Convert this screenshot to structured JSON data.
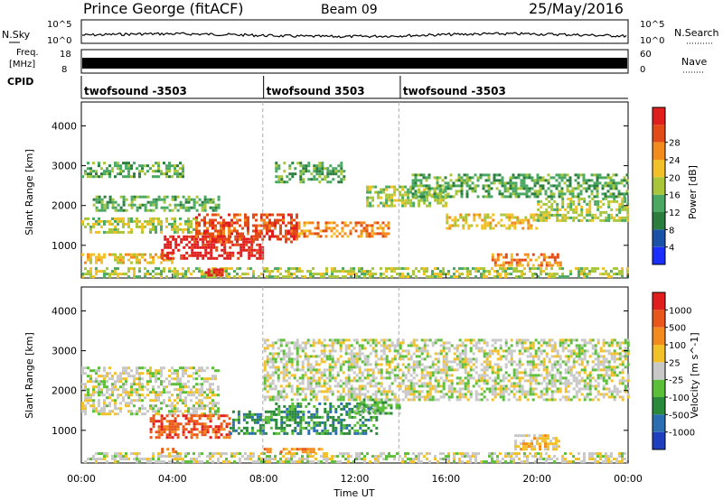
{
  "header": {
    "station": "Prince George (fitACF)",
    "beam": "Beam 09",
    "date": "25/May/2016"
  },
  "top_strips": {
    "nsky_label": "N.Sky",
    "nsky_ticks": [
      "10^5",
      "10^0"
    ],
    "nsearch_label": "N.Search",
    "freq_label_1": "Freq.",
    "freq_label_2": "[MHz]",
    "freq_ticks": [
      "18",
      "8"
    ],
    "nave_ticks": [
      "60",
      "0"
    ],
    "nave_label": "Nave",
    "cpid_label": "CPID",
    "cpid_segments": [
      {
        "start_hour": 0,
        "end_hour": 8,
        "label": "twofsound -3503"
      },
      {
        "start_hour": 8,
        "end_hour": 14,
        "label": "twofsound 3503"
      },
      {
        "start_hour": 14,
        "end_hour": 24,
        "label": "twofsound -3503"
      }
    ]
  },
  "x_axis": {
    "label": "Time UT",
    "ticks": [
      "00:00",
      "04:00",
      "08:00",
      "12:00",
      "16:00",
      "20:00",
      "00:00"
    ]
  },
  "chart_data": [
    {
      "type": "heatmap",
      "title": "",
      "xlabel": "Time UT",
      "ylabel": "Slant Range [km]",
      "x_range_hours": [
        0,
        24
      ],
      "ylim": [
        180,
        4600
      ],
      "yticks": [
        1000,
        2000,
        3000,
        4000
      ],
      "colorbar": {
        "label": "Power [dB]",
        "ticks": [
          "4",
          "8",
          "12",
          "16",
          "20",
          "24",
          "28"
        ],
        "colors": [
          "#1a2fff",
          "#1a52a8",
          "#2a7d3c",
          "#4aa862",
          "#a9c63a",
          "#f2c12a",
          "#f28a1e",
          "#e24b17",
          "#e01e1e"
        ]
      },
      "features": [
        {
          "t0": 0.0,
          "t1": 24.0,
          "r0": 200,
          "r1": 450,
          "level": 4
        },
        {
          "t0": 0.0,
          "t1": 4.0,
          "r0": 550,
          "r1": 800,
          "level": 5
        },
        {
          "t0": 0.0,
          "t1": 5.0,
          "r0": 1350,
          "r1": 1700,
          "level": 4
        },
        {
          "t0": 0.5,
          "t1": 6.0,
          "r0": 1850,
          "r1": 2250,
          "level": 3
        },
        {
          "t0": 0.0,
          "t1": 4.5,
          "r0": 2700,
          "r1": 3100,
          "level": 3
        },
        {
          "t0": 3.5,
          "t1": 8.0,
          "r0": 650,
          "r1": 1250,
          "level": 8
        },
        {
          "t0": 5.0,
          "t1": 9.5,
          "r0": 1100,
          "r1": 1800,
          "level": 7
        },
        {
          "t0": 5.3,
          "t1": 6.2,
          "r0": 250,
          "r1": 420,
          "level": 8
        },
        {
          "t0": 8.5,
          "t1": 11.5,
          "r0": 2600,
          "r1": 3100,
          "level": 3
        },
        {
          "t0": 9.5,
          "t1": 13.5,
          "r0": 1200,
          "r1": 1600,
          "level": 6
        },
        {
          "t0": 12.5,
          "t1": 16.0,
          "r0": 2000,
          "r1": 2500,
          "level": 4
        },
        {
          "t0": 16.0,
          "t1": 20.0,
          "r0": 1400,
          "r1": 1800,
          "level": 5
        },
        {
          "t0": 14.5,
          "t1": 24.0,
          "r0": 2200,
          "r1": 2800,
          "level": 3
        },
        {
          "t0": 18.0,
          "t1": 21.0,
          "r0": 500,
          "r1": 800,
          "level": 6
        },
        {
          "t0": 20.0,
          "t1": 24.0,
          "r0": 1600,
          "r1": 2200,
          "level": 4
        }
      ]
    },
    {
      "type": "heatmap",
      "title": "",
      "xlabel": "Time UT",
      "ylabel": "Slant Range [km]",
      "x_range_hours": [
        0,
        24
      ],
      "ylim": [
        180,
        4600
      ],
      "yticks": [
        1000,
        2000,
        3000,
        4000
      ],
      "colorbar": {
        "label": "Velocity [m s^-1]",
        "ticks": [
          "1000",
          "500",
          "100",
          "25",
          "-25",
          "-100",
          "-500",
          "-1000"
        ],
        "colors": [
          "#1f3fbf",
          "#2a6db0",
          "#2a8a3c",
          "#5cbf3a",
          "#c8c8c8",
          "#f2c12a",
          "#f28a1e",
          "#e8561a",
          "#e01e1e"
        ]
      },
      "features": [
        {
          "t0": 0.0,
          "t1": 24.0,
          "r0": 200,
          "r1": 450,
          "level": 4
        },
        {
          "t0": 0.0,
          "t1": 6.0,
          "r0": 1400,
          "r1": 2600,
          "level": 4
        },
        {
          "t0": 3.0,
          "t1": 6.5,
          "r0": 800,
          "r1": 1400,
          "level": 7
        },
        {
          "t0": 6.5,
          "t1": 8.5,
          "r0": 900,
          "r1": 1500,
          "level": 2
        },
        {
          "t0": 8.5,
          "t1": 13.0,
          "r0": 900,
          "r1": 1700,
          "level": 2
        },
        {
          "t0": 12.0,
          "t1": 14.0,
          "r0": 1400,
          "r1": 1800,
          "level": 3
        },
        {
          "t0": 8.0,
          "t1": 24.0,
          "r0": 1800,
          "r1": 3300,
          "level": 4
        },
        {
          "t0": 3.5,
          "t1": 4.2,
          "r0": 450,
          "r1": 560,
          "level": 6
        },
        {
          "t0": 8.0,
          "t1": 10.5,
          "r0": 450,
          "r1": 560,
          "level": 6
        },
        {
          "t0": 19.0,
          "t1": 21.0,
          "r0": 500,
          "r1": 900,
          "level": 5
        }
      ]
    }
  ]
}
